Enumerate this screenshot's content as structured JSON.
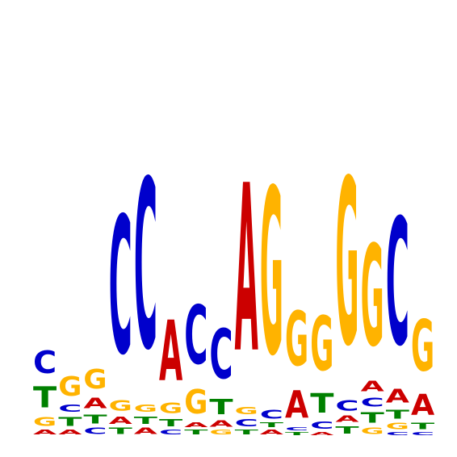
{
  "chart_data": {
    "type": "sequence-logo",
    "title": "",
    "xlabel": "",
    "ylabel": "",
    "ylim": [
      0,
      2
    ],
    "colors": {
      "A": "#cc0000",
      "C": "#0000cc",
      "G": "#ffb300",
      "T": "#008000"
    },
    "positions": [
      {
        "stack": [
          {
            "base": "A",
            "bits": 0.03
          },
          {
            "base": "G",
            "bits": 0.06
          },
          {
            "base": "T",
            "bits": 0.14
          },
          {
            "base": "C",
            "bits": 0.15
          }
        ]
      },
      {
        "stack": [
          {
            "base": "A",
            "bits": 0.03
          },
          {
            "base": "T",
            "bits": 0.06
          },
          {
            "base": "C",
            "bits": 0.05
          },
          {
            "base": "G",
            "bits": 0.13
          }
        ]
      },
      {
        "stack": [
          {
            "base": "C",
            "bits": 0.04
          },
          {
            "base": "T",
            "bits": 0.06
          },
          {
            "base": "A",
            "bits": 0.07
          },
          {
            "base": "G",
            "bits": 0.13
          }
        ]
      },
      {
        "stack": [
          {
            "base": "T",
            "bits": 0.04
          },
          {
            "base": "A",
            "bits": 0.05
          },
          {
            "base": "G",
            "bits": 0.07
          },
          {
            "base": "C",
            "bits": 0.91
          }
        ]
      },
      {
        "stack": [
          {
            "base": "A",
            "bits": 0.04
          },
          {
            "base": "T",
            "bits": 0.05
          },
          {
            "base": "G",
            "bits": 0.05
          },
          {
            "base": "C",
            "bits": 1.12
          }
        ]
      },
      {
        "stack": [
          {
            "base": "C",
            "bits": 0.03
          },
          {
            "base": "T",
            "bits": 0.05
          },
          {
            "base": "G",
            "bits": 0.07
          },
          {
            "base": "A",
            "bits": 0.4
          }
        ]
      },
      {
        "stack": [
          {
            "base": "T",
            "bits": 0.03
          },
          {
            "base": "A",
            "bits": 0.03
          },
          {
            "base": "G",
            "bits": 0.16
          },
          {
            "base": "C",
            "bits": 0.39
          }
        ]
      },
      {
        "stack": [
          {
            "base": "G",
            "bits": 0.03
          },
          {
            "base": "A",
            "bits": 0.04
          },
          {
            "base": "T",
            "bits": 0.1
          },
          {
            "base": "C",
            "bits": 0.33
          }
        ]
      },
      {
        "stack": [
          {
            "base": "T",
            "bits": 0.03
          },
          {
            "base": "C",
            "bits": 0.05
          },
          {
            "base": "G",
            "bits": 0.05
          },
          {
            "base": "A",
            "bits": 1.11
          }
        ]
      },
      {
        "stack": [
          {
            "base": "A",
            "bits": 0.03
          },
          {
            "base": "T",
            "bits": 0.03
          },
          {
            "base": "C",
            "bits": 0.06
          },
          {
            "base": "G",
            "bits": 1.1
          }
        ]
      },
      {
        "stack": [
          {
            "base": "T",
            "bits": 0.02
          },
          {
            "base": "C",
            "bits": 0.02
          },
          {
            "base": "A",
            "bits": 0.18
          },
          {
            "base": "G",
            "bits": 0.36
          }
        ]
      },
      {
        "stack": [
          {
            "base": "A",
            "bits": 0.02
          },
          {
            "base": "C",
            "bits": 0.05
          },
          {
            "base": "T",
            "bits": 0.13
          },
          {
            "base": "G",
            "bits": 0.36
          }
        ]
      },
      {
        "stack": [
          {
            "base": "T",
            "bits": 0.05
          },
          {
            "base": "A",
            "bits": 0.04
          },
          {
            "base": "C",
            "bits": 0.07
          },
          {
            "base": "G",
            "bits": 1.1
          }
        ]
      },
      {
        "stack": [
          {
            "base": "G",
            "bits": 0.04
          },
          {
            "base": "T",
            "bits": 0.07
          },
          {
            "base": "C",
            "bits": 0.06
          },
          {
            "base": "A",
            "bits": 0.07
          },
          {
            "base": "G",
            "bits": 0.67
          }
        ]
      },
      {
        "stack": [
          {
            "base": "C",
            "bits": 0.02
          },
          {
            "base": "G",
            "bits": 0.04
          },
          {
            "base": "T",
            "bits": 0.06
          },
          {
            "base": "A",
            "bits": 0.09
          },
          {
            "base": "C",
            "bits": 0.84
          }
        ]
      },
      {
        "stack": [
          {
            "base": "C",
            "bits": 0.02
          },
          {
            "base": "T",
            "bits": 0.04
          },
          {
            "base": "A",
            "bits": 0.14
          },
          {
            "base": "G",
            "bits": 0.34
          }
        ]
      }
    ]
  }
}
